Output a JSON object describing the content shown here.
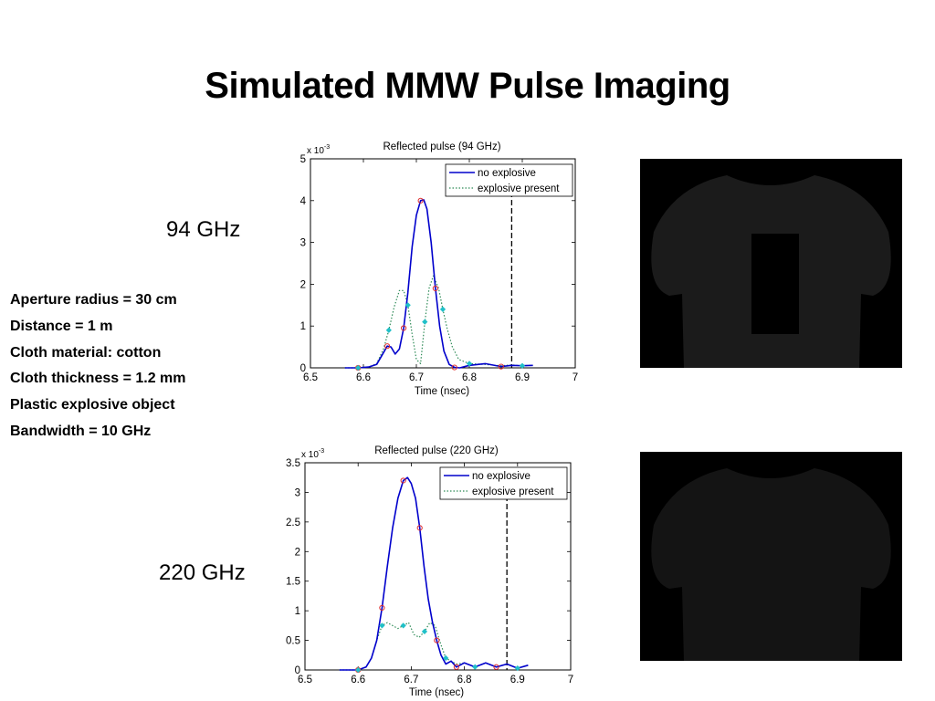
{
  "slide": {
    "title": "Simulated MMW Pulse Imaging",
    "label_94": "94 GHz",
    "label_220": "220 GHz",
    "parameters": [
      "Aperture radius = 30 cm",
      "Distance = 1 m",
      "Cloth material: cotton",
      "Cloth thickness = 1.2 mm",
      "Plastic explosive object",
      "Bandwidth = 10 GHz"
    ]
  },
  "colors": {
    "no_explosive": "#0000cc",
    "explosive_present": "#2e8b57",
    "marker_red": "#e03030",
    "marker_cyan": "#20c0c8",
    "threshold": "#000000",
    "image_bg": "#000000",
    "silhouette_94": "#1b1b1b",
    "silhouette_220": "#141414"
  },
  "chart_data": [
    {
      "type": "line",
      "title": "Reflected pulse (94 GHz)",
      "xlabel": "Time (nsec)",
      "ylabel": "",
      "y_scale_label": "x 10",
      "y_scale_exp": "-3",
      "xlim": [
        6.5,
        7.0
      ],
      "ylim": [
        0,
        5
      ],
      "xticks": [
        "6.5",
        "6.6",
        "6.7",
        "6.8",
        "6.9",
        "7"
      ],
      "yticks": [
        "0",
        "1",
        "2",
        "3",
        "4",
        "5"
      ],
      "grid": false,
      "legend": "top-right",
      "threshold_x": 6.88,
      "series": [
        {
          "name": "no explosive",
          "style": "solid",
          "x": [
            6.565,
            6.59,
            6.61,
            6.625,
            6.635,
            6.645,
            6.652,
            6.66,
            6.668,
            6.676,
            6.684,
            6.692,
            6.7,
            6.708,
            6.714,
            6.72,
            6.728,
            6.736,
            6.744,
            6.752,
            6.762,
            6.772,
            6.782,
            6.8,
            6.83,
            6.86,
            6.88,
            6.9,
            6.92
          ],
          "values": [
            0.0,
            0.0,
            0.02,
            0.08,
            0.3,
            0.52,
            0.5,
            0.33,
            0.45,
            0.95,
            1.8,
            2.9,
            3.65,
            4.0,
            4.02,
            3.8,
            3.0,
            1.9,
            1.0,
            0.4,
            0.08,
            0.01,
            0.0,
            0.06,
            0.1,
            0.03,
            0.06,
            0.05,
            0.06
          ]
        },
        {
          "name": "explosive present",
          "style": "dotted",
          "x": [
            6.565,
            6.59,
            6.61,
            6.625,
            6.638,
            6.648,
            6.658,
            6.668,
            6.676,
            6.684,
            6.692,
            6.7,
            6.708,
            6.716,
            6.724,
            6.732,
            6.742,
            6.75,
            6.758,
            6.768,
            6.78,
            6.8,
            6.83,
            6.86,
            6.88,
            6.9,
            6.92
          ],
          "values": [
            0.0,
            0.0,
            0.02,
            0.1,
            0.45,
            0.9,
            1.45,
            1.85,
            1.85,
            1.5,
            0.8,
            0.2,
            0.1,
            1.1,
            1.9,
            2.2,
            1.9,
            1.4,
            0.95,
            0.5,
            0.2,
            0.1,
            0.08,
            0.05,
            0.07,
            0.05,
            0.06
          ]
        }
      ]
    },
    {
      "type": "line",
      "title": "Reflected pulse (220 GHz)",
      "xlabel": "Time (nsec)",
      "ylabel": "",
      "y_scale_label": "x 10",
      "y_scale_exp": "-3",
      "xlim": [
        6.5,
        7.0
      ],
      "ylim": [
        0,
        3.5
      ],
      "xticks": [
        "6.5",
        "6.6",
        "6.7",
        "6.8",
        "6.9",
        "7"
      ],
      "yticks": [
        "0",
        "0.5",
        "1",
        "1.5",
        "2",
        "2.5",
        "3",
        "3.5"
      ],
      "grid": false,
      "legend": "top-right",
      "threshold_x": 6.88,
      "series": [
        {
          "name": "no explosive",
          "style": "solid",
          "x": [
            6.565,
            6.6,
            6.615,
            6.625,
            6.635,
            6.645,
            6.655,
            6.665,
            6.675,
            6.685,
            6.693,
            6.7,
            6.708,
            6.716,
            6.724,
            6.732,
            6.74,
            6.748,
            6.756,
            6.765,
            6.775,
            6.785,
            6.8,
            6.82,
            6.84,
            6.86,
            6.88,
            6.9,
            6.92
          ],
          "values": [
            0.0,
            0.0,
            0.05,
            0.2,
            0.5,
            1.05,
            1.75,
            2.4,
            2.9,
            3.2,
            3.25,
            3.15,
            2.9,
            2.4,
            1.75,
            1.2,
            0.8,
            0.5,
            0.25,
            0.1,
            0.15,
            0.05,
            0.12,
            0.05,
            0.12,
            0.05,
            0.1,
            0.03,
            0.08
          ]
        },
        {
          "name": "explosive present",
          "style": "dotted",
          "x": [
            6.565,
            6.6,
            6.615,
            6.625,
            6.635,
            6.645,
            6.655,
            6.665,
            6.675,
            6.685,
            6.695,
            6.705,
            6.715,
            6.725,
            6.735,
            6.745,
            6.755,
            6.765,
            6.775,
            6.785,
            6.8,
            6.82,
            6.84,
            6.86,
            6.88,
            6.9,
            6.92
          ],
          "values": [
            0.0,
            0.0,
            0.05,
            0.2,
            0.5,
            0.75,
            0.8,
            0.75,
            0.7,
            0.75,
            0.8,
            0.6,
            0.55,
            0.65,
            0.8,
            0.75,
            0.45,
            0.2,
            0.15,
            0.1,
            0.12,
            0.05,
            0.12,
            0.05,
            0.1,
            0.03,
            0.08
          ]
        }
      ]
    }
  ]
}
